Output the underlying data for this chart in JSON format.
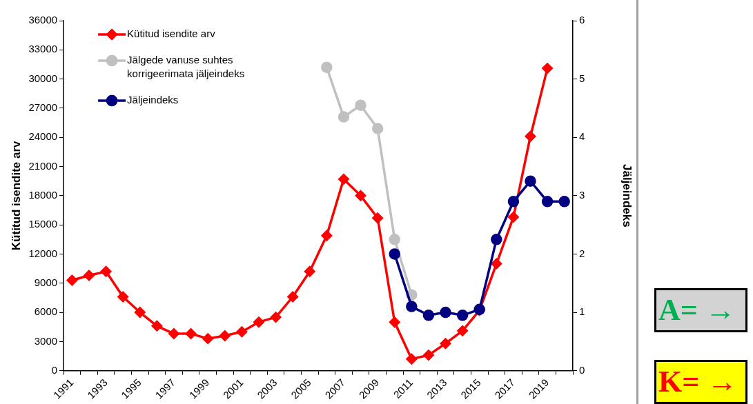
{
  "chart_data": {
    "type": "line",
    "categories": [
      "1991",
      null,
      "1993",
      null,
      "1995",
      null,
      "1997",
      null,
      "1999",
      null,
      "2001",
      null,
      "2003",
      null,
      "2005",
      null,
      "2007",
      null,
      "2009",
      null,
      "2011",
      null,
      "2013",
      null,
      "2015",
      null,
      "2017",
      null,
      "2019",
      null
    ],
    "series": [
      {
        "name": "Kütitud isendite arv",
        "color": "#ff0000",
        "marker": "diamond",
        "values": [
          9300,
          9800,
          10200,
          7600,
          6000,
          4600,
          3800,
          3800,
          3300,
          3600,
          4000,
          5000,
          5500,
          7600,
          10200,
          13900,
          19700,
          18000,
          15700,
          5000,
          1200,
          1600,
          2800,
          4100,
          6200,
          11000,
          15800,
          24100,
          31100,
          null
        ]
      },
      {
        "name": "Jälgede vanuse suhtes korrigeerimata jäljeindeks",
        "color": "#c0c0c0",
        "marker": "circle",
        "axis": "y2",
        "values": [
          null,
          null,
          null,
          null,
          null,
          null,
          null,
          null,
          null,
          null,
          null,
          null,
          null,
          null,
          null,
          5.2,
          4.35,
          4.55,
          4.15,
          2.25,
          1.3,
          null,
          null,
          null,
          null,
          null,
          null,
          null,
          null,
          null
        ]
      },
      {
        "name": "Jäljeindeks",
        "color": "#000080",
        "marker": "circle",
        "axis": "y2",
        "values": [
          null,
          null,
          null,
          null,
          null,
          null,
          null,
          null,
          null,
          null,
          null,
          null,
          null,
          null,
          null,
          null,
          null,
          null,
          null,
          2.0,
          1.1,
          0.95,
          1.0,
          0.95,
          1.05,
          2.25,
          2.9,
          3.25,
          2.9,
          2.9
        ]
      }
    ],
    "ylabel": "Kütitud isendite arv",
    "y2label": "Jäljeindeks",
    "ylim": [
      0,
      36000
    ],
    "yticks": [
      0,
      3000,
      6000,
      9000,
      12000,
      15000,
      18000,
      21000,
      24000,
      27000,
      30000,
      33000,
      36000
    ],
    "y2lim": [
      0,
      6
    ],
    "y2ticks": [
      0,
      1,
      2,
      3,
      4,
      5,
      6
    ],
    "legend": "top left",
    "annotations": [
      "A= →",
      "K= →"
    ]
  }
}
